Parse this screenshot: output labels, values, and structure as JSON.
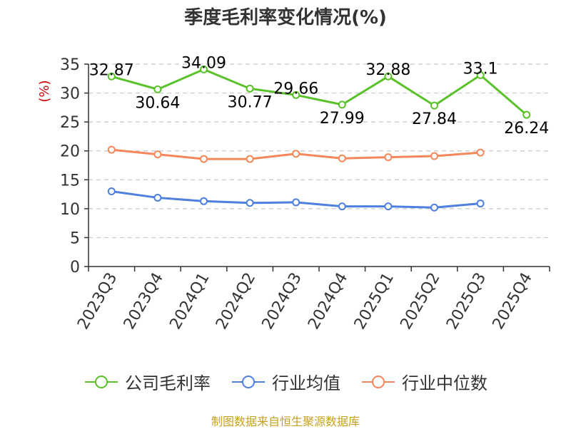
{
  "chart_data": {
    "type": "line",
    "title": "季度毛利率变化情况(%)",
    "ylabel": "(%)",
    "xlabel": "",
    "categories": [
      "2023Q3",
      "2023Q4",
      "2024Q1",
      "2024Q2",
      "2024Q3",
      "2024Q4",
      "2025Q1",
      "2025Q2",
      "2025Q3",
      "2025Q4"
    ],
    "ylim": [
      0,
      35
    ],
    "yticks": [
      0,
      5,
      10,
      15,
      20,
      25,
      30,
      35
    ],
    "grid": true,
    "legend_position": "bottom",
    "series": [
      {
        "name": "公司毛利率",
        "color": "#5ac12a",
        "show_labels": true,
        "values": [
          32.87,
          30.64,
          34.09,
          30.77,
          29.66,
          27.99,
          32.88,
          27.84,
          33.1,
          26.24
        ]
      },
      {
        "name": "行业均值",
        "color": "#4f7fdf",
        "show_labels": false,
        "values": [
          13.0,
          11.9,
          11.3,
          11.0,
          11.1,
          10.4,
          10.4,
          10.2,
          10.9,
          null
        ]
      },
      {
        "name": "行业中位数",
        "color": "#f5875a",
        "show_labels": false,
        "values": [
          20.2,
          19.4,
          18.6,
          18.6,
          19.5,
          18.7,
          18.9,
          19.1,
          19.7,
          null
        ]
      }
    ]
  },
  "source": "制图数据来自恒生聚源数据库"
}
